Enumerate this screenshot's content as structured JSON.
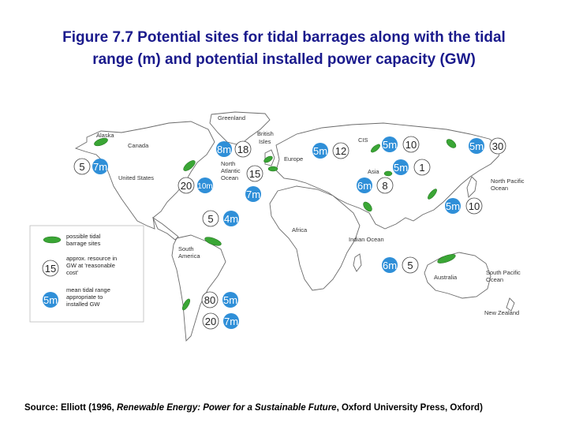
{
  "title_line1": "Figure 7.7 Potential sites for tidal barrages along with the tidal",
  "title_line2": "range (m) and potential installed power capacity (GW)",
  "source": {
    "prefix": "Source: Elliott (1996, ",
    "book": "Renewable Energy: Power for a Sustainable Future",
    "suffix": ", Oxford University Press, Oxford)"
  },
  "map_labels": {
    "greenland": "Greenland",
    "alaska": "Alaska",
    "canada": "Canada",
    "british1": "British",
    "british2": "Isles",
    "cis": "CIS",
    "europe": "Europe",
    "north1": "North",
    "north2": "Atlantic",
    "north3": "Ocean",
    "us": "United States",
    "asia": "Asia",
    "np1": "North Pacific",
    "np2": "Ocean",
    "africa": "Africa",
    "indian": "Indian Ocean",
    "sa1": "South",
    "sa2": "America",
    "australia": "Australia",
    "sp1": "South Pacific",
    "sp2": "Ocean",
    "nz": "New Zealand"
  },
  "legend": {
    "sites": [
      "possible tidal",
      "barrage sites"
    ],
    "resource": [
      "approx. resource in",
      "GW at 'reasonable",
      "cost'"
    ],
    "range": [
      "mean tidal range",
      "appropriate to",
      "installed GW"
    ],
    "sample_resource": "15",
    "sample_range": "5m"
  },
  "sites": {
    "alaska_gw": "5",
    "alaska_m": "7m",
    "uk_m": "8m",
    "uk_gw": "18",
    "eu_m": "5m",
    "eu_gw": "12",
    "cis_m": "5m",
    "cis_gw": "10",
    "okhotsk_m": "5m",
    "okhotsk_gw": "30",
    "na_gw": "15",
    "fundy_gw": "20",
    "fundy_m": "10m",
    "atl_m": "7m",
    "asia_m": "5m",
    "asia_gw": "1",
    "india_m": "6m",
    "india_gw": "8",
    "korea_m": "5m",
    "korea_gw": "10",
    "brazil_gw": "5",
    "brazil_m": "4m",
    "aus_m": "6m",
    "aus_gw": "5",
    "arg_gw": "80",
    "arg_m": "5m",
    "arg2_gw": "20",
    "arg2_m": "7m"
  }
}
